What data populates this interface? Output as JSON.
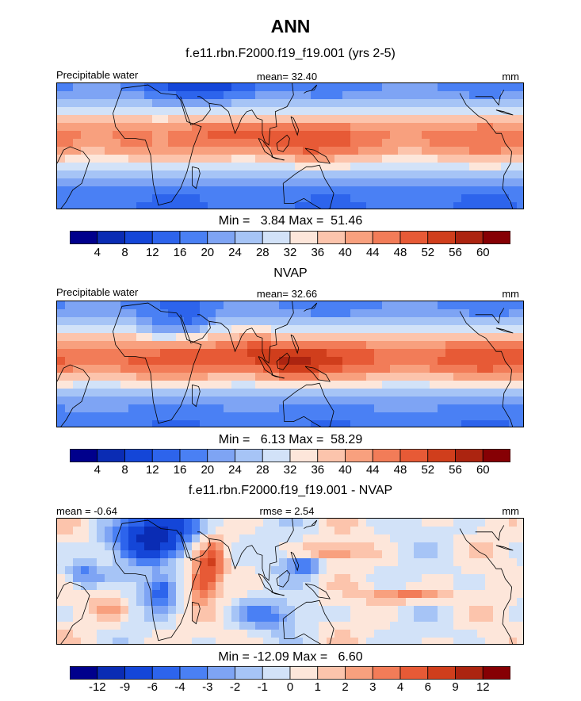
{
  "title": "ANN",
  "chart_data": [
    {
      "type": "heatmap",
      "title": "f.e11.rbn.F2000.f19_f19.001 (yrs 2-5)",
      "left_label": "Precipitable water",
      "center_label": "mean=  32.40",
      "right_label": "mm",
      "variable": "Precipitable water",
      "units": "mm",
      "mean": 32.4,
      "min": 3.84,
      "max": 51.46,
      "minmax_text": "Min =   3.84 Max =  51.46",
      "colorbar_levels": [
        "4",
        "8",
        "12",
        "16",
        "20",
        "24",
        "28",
        "32",
        "36",
        "40",
        "44",
        "48",
        "52",
        "56",
        "60"
      ],
      "colorbar_colors": [
        "#00008c",
        "#0a2cb4",
        "#1446d8",
        "#2d64ec",
        "#4a80f4",
        "#7ea4f4",
        "#a6c4f6",
        "#d2e2f8",
        "#fde6da",
        "#fcc4ac",
        "#f8a07e",
        "#f27c58",
        "#e75a36",
        "#d03e1c",
        "#ac2410",
        "#860004"
      ],
      "field": {
        "kind": "itcz",
        "lat_peak": 5,
        "width": 20,
        "base": 16,
        "amp": 30,
        "sigma_range": [
          1.5,
          51
        ],
        "hotspots": [
          {
            "lon": 125,
            "lat": 3,
            "amp": 6,
            "rx": 30,
            "ry": 12
          },
          {
            "lon": 80,
            "lat": 8,
            "amp": 5,
            "rx": 25,
            "ry": 10
          },
          {
            "lon": 20,
            "lat": 5,
            "amp": -4,
            "rx": 15,
            "ry": 15
          },
          {
            "lon": 60,
            "lat": 42,
            "amp": -12,
            "rx": 40,
            "ry": 14
          }
        ]
      }
    },
    {
      "type": "heatmap",
      "title": "NVAP",
      "left_label": "Precipitable water",
      "center_label": "mean=  32.66",
      "right_label": "mm",
      "variable": "Precipitable water",
      "units": "mm",
      "mean": 32.66,
      "min": 6.13,
      "max": 58.29,
      "minmax_text": "Min =   6.13 Max =  58.29",
      "colorbar_levels": [
        "4",
        "8",
        "12",
        "16",
        "20",
        "24",
        "28",
        "32",
        "36",
        "40",
        "44",
        "48",
        "52",
        "56",
        "60"
      ],
      "colorbar_colors": [
        "#00008c",
        "#0a2cb4",
        "#1446d8",
        "#2d64ec",
        "#4a80f4",
        "#7ea4f4",
        "#a6c4f6",
        "#d2e2f8",
        "#fde6da",
        "#fcc4ac",
        "#f8a07e",
        "#f27c58",
        "#e75a36",
        "#d03e1c",
        "#ac2410",
        "#860004"
      ],
      "field": {
        "kind": "itcz",
        "lat_peak": 4,
        "width": 19,
        "base": 17,
        "amp": 32,
        "sigma_range": [
          3,
          58
        ],
        "hotspots": [
          {
            "lon": 120,
            "lat": 0,
            "amp": 9,
            "rx": 25,
            "ry": 10
          },
          {
            "lon": 90,
            "lat": 10,
            "amp": 6,
            "rx": 20,
            "ry": 10
          },
          {
            "lon": 20,
            "lat": 20,
            "amp": -10,
            "rx": 15,
            "ry": 10
          },
          {
            "lon": 45,
            "lat": 25,
            "amp": -8,
            "rx": 15,
            "ry": 10
          }
        ]
      }
    },
    {
      "type": "heatmap",
      "title": "f.e11.rbn.F2000.f19_f19.001 - NVAP",
      "left_label": "mean =  -0.64",
      "center_label": "rmse =   2.54",
      "right_label": "mm",
      "variable": "Precipitable water difference",
      "units": "mm",
      "mean": -0.64,
      "rmse": 2.54,
      "min": -12.09,
      "max": 6.6,
      "minmax_text": "Min = -12.09 Max =   6.60",
      "colorbar_levels": [
        "-12",
        "-9",
        "-6",
        "-4",
        "-3",
        "-2",
        "-1",
        "0",
        "1",
        "2",
        "3",
        "4",
        "6",
        "9",
        "12"
      ],
      "colorbar_colors": [
        "#00008c",
        "#0a2cb4",
        "#1446d8",
        "#2d64ec",
        "#4a80f4",
        "#7ea4f4",
        "#a6c4f6",
        "#d2e2f8",
        "#fde6da",
        "#fcc4ac",
        "#f8a07e",
        "#f27c58",
        "#e75a36",
        "#d03e1c",
        "#ac2410",
        "#860004"
      ],
      "field": {
        "kind": "diff",
        "hotspots": [
          {
            "lon": 10,
            "lat": 25,
            "amp": -9,
            "rx": 25,
            "ry": 12
          },
          {
            "lon": 30,
            "lat": 35,
            "amp": -6,
            "rx": 20,
            "ry": 10
          },
          {
            "lon": 60,
            "lat": 10,
            "amp": 5,
            "rx": 8,
            "ry": 14
          },
          {
            "lon": 50,
            "lat": 0,
            "amp": 4,
            "rx": 8,
            "ry": 12
          },
          {
            "lon": 150,
            "lat": 18,
            "amp": 3,
            "rx": 25,
            "ry": 5
          },
          {
            "lon": 210,
            "lat": -8,
            "amp": 4,
            "rx": 30,
            "ry": 4
          },
          {
            "lon": 100,
            "lat": -20,
            "amp": -3,
            "rx": 25,
            "ry": 8
          },
          {
            "lon": 130,
            "lat": 10,
            "amp": -4,
            "rx": 15,
            "ry": 6
          },
          {
            "lon": -40,
            "lat": 5,
            "amp": -4,
            "rx": 15,
            "ry": 8
          },
          {
            "lon": 20,
            "lat": -5,
            "amp": -5,
            "rx": 12,
            "ry": 10
          },
          {
            "lon": -20,
            "lat": -15,
            "amp": 2,
            "rx": 15,
            "ry": 10
          }
        ]
      }
    }
  ]
}
